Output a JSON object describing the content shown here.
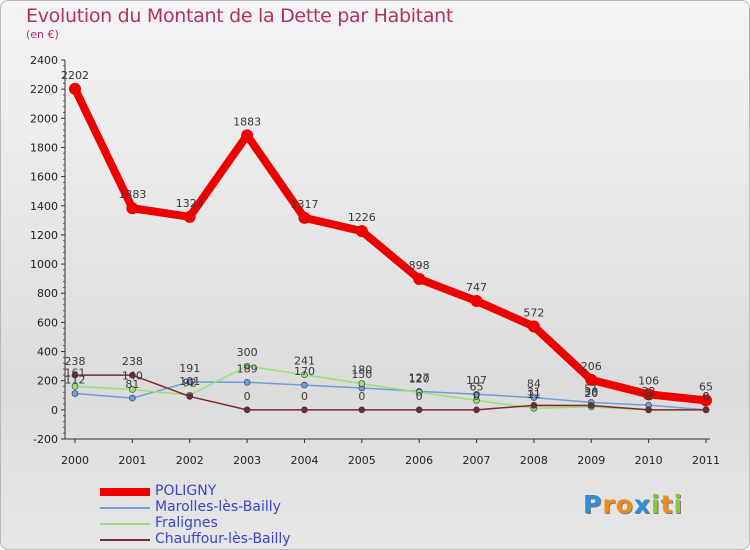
{
  "title": "Evolution du Montant de la Dette par Habitant",
  "subtitle": "(en €)",
  "logo": {
    "letters": [
      {
        "ch": "P",
        "color": "#2b8fd8"
      },
      {
        "ch": "r",
        "color": "#f08c1a"
      },
      {
        "ch": "o",
        "color": "#f08c1a"
      },
      {
        "ch": "x",
        "color": "#2b8fd8"
      },
      {
        "ch": "i",
        "color": "#8cc63f"
      },
      {
        "ch": "t",
        "color": "#f08c1a"
      },
      {
        "ch": "i",
        "color": "#8cc63f"
      }
    ]
  },
  "chart_data": {
    "type": "line",
    "title": "Evolution du Montant de la Dette par Habitant",
    "subtitle": "(en €)",
    "x": [
      "2000",
      "2001",
      "2002",
      "2003",
      "2004",
      "2005",
      "2006",
      "2007",
      "2008",
      "2009",
      "2010",
      "2011"
    ],
    "ylim": [
      -200,
      2400
    ],
    "yticks": [
      -200,
      0,
      200,
      400,
      600,
      800,
      1000,
      1200,
      1400,
      1600,
      1800,
      2000,
      2200,
      2400
    ],
    "grid": false,
    "legend_position": "bottom-left",
    "series": [
      {
        "name": "POLIGNY",
        "color": "#ee0000",
        "width": 8,
        "values": [
          2202,
          1383,
          1324,
          1883,
          1317,
          1226,
          898,
          747,
          572,
          206,
          106,
          65
        ],
        "labels": [
          "2202",
          "1383",
          "1324",
          "1883",
          "1317",
          "1226",
          "898",
          "747",
          "572",
          "206",
          "106",
          "65"
        ]
      },
      {
        "name": "Marolles-lès-Bailly",
        "color": "#6f9fd8",
        "width": 1.5,
        "values": [
          112,
          81,
          191,
          189,
          170,
          150,
          127,
          107,
          84,
          51,
          32,
          0
        ],
        "labels": [
          "112",
          "81",
          "191",
          "189",
          "170",
          "150",
          "127",
          "107",
          "84",
          "51",
          "32",
          "0"
        ]
      },
      {
        "name": "Fralignes",
        "color": "#98e070",
        "width": 1.5,
        "values": [
          161,
          140,
          101,
          300,
          241,
          180,
          120,
          65,
          11,
          20,
          0,
          0
        ],
        "labels": [
          "161",
          "140",
          "101",
          "300",
          "241",
          "180",
          "120",
          "65",
          "11",
          "20",
          "0",
          "0"
        ]
      },
      {
        "name": "Chauffour-lès-Bailly",
        "color": "#7a2a2a",
        "width": 1.5,
        "values": [
          238,
          238,
          92,
          0,
          0,
          0,
          0,
          0,
          31,
          30,
          0,
          0
        ],
        "labels": [
          "238",
          "238",
          "92",
          "0",
          "0",
          "0",
          "0",
          "0",
          "31",
          "30",
          "0",
          "0"
        ]
      }
    ]
  }
}
